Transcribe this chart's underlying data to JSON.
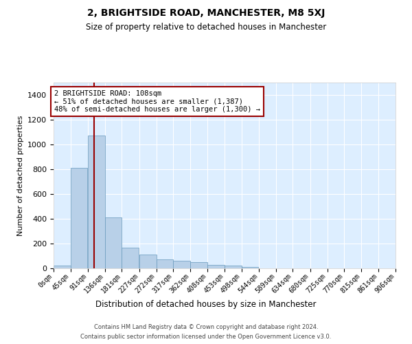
{
  "title": "2, BRIGHTSIDE ROAD, MANCHESTER, M8 5XJ",
  "subtitle": "Size of property relative to detached houses in Manchester",
  "xlabel": "Distribution of detached houses by size in Manchester",
  "ylabel": "Number of detached properties",
  "bar_color": "#b8d0e8",
  "bar_edge_color": "#6699bb",
  "background_color": "#ddeeff",
  "property_line_x": 108,
  "property_line_color": "#990000",
  "annotation_text": "2 BRIGHTSIDE ROAD: 108sqm\n← 51% of detached houses are smaller (1,387)\n48% of semi-detached houses are larger (1,300) →",
  "bin_edges": [
    0,
    45,
    91,
    136,
    181,
    227,
    272,
    317,
    362,
    408,
    453,
    498,
    544,
    589,
    634,
    680,
    725,
    770,
    815,
    861,
    906
  ],
  "bin_labels": [
    "0sqm",
    "45sqm",
    "91sqm",
    "136sqm",
    "181sqm",
    "227sqm",
    "272sqm",
    "317sqm",
    "362sqm",
    "408sqm",
    "453sqm",
    "498sqm",
    "544sqm",
    "589sqm",
    "634sqm",
    "680sqm",
    "725sqm",
    "770sqm",
    "815sqm",
    "861sqm",
    "906sqm"
  ],
  "bar_heights": [
    20,
    810,
    1070,
    410,
    165,
    110,
    70,
    60,
    50,
    30,
    20,
    10,
    0,
    0,
    0,
    0,
    0,
    0,
    0,
    0
  ],
  "ylim": [
    0,
    1500
  ],
  "yticks": [
    0,
    200,
    400,
    600,
    800,
    1000,
    1200,
    1400
  ],
  "footer_line1": "Contains HM Land Registry data © Crown copyright and database right 2024.",
  "footer_line2": "Contains public sector information licensed under the Open Government Licence v3.0."
}
